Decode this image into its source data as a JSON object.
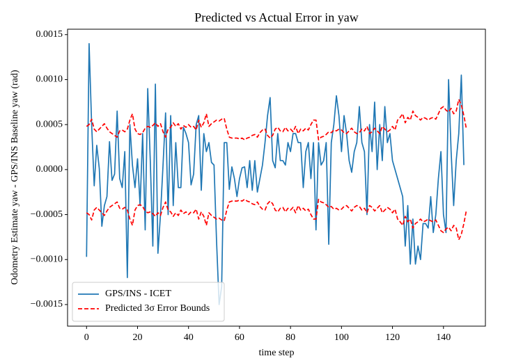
{
  "chart_data": {
    "type": "line",
    "title": "Predicted vs Actual Error in yaw",
    "x_label": "time step",
    "y_label": "Odometry Estimate yaw - GPS/INS Baseline yaw (rad)",
    "x": [
      0,
      1,
      2,
      3,
      4,
      5,
      6,
      7,
      8,
      9,
      10,
      11,
      12,
      13,
      14,
      15,
      16,
      17,
      18,
      19,
      20,
      21,
      22,
      23,
      24,
      25,
      26,
      27,
      28,
      29,
      30,
      31,
      32,
      33,
      34,
      35,
      36,
      37,
      38,
      39,
      40,
      41,
      42,
      43,
      44,
      45,
      46,
      47,
      48,
      49,
      50,
      51,
      52,
      53,
      54,
      55,
      56,
      57,
      58,
      59,
      60,
      61,
      62,
      63,
      64,
      65,
      66,
      67,
      68,
      69,
      70,
      71,
      72,
      73,
      74,
      75,
      76,
      77,
      78,
      79,
      80,
      81,
      82,
      83,
      84,
      85,
      86,
      87,
      88,
      89,
      90,
      91,
      92,
      93,
      94,
      95,
      96,
      97,
      98,
      99,
      100,
      101,
      102,
      103,
      104,
      105,
      106,
      107,
      108,
      109,
      110,
      111,
      112,
      113,
      114,
      115,
      116,
      117,
      118,
      119,
      120,
      121,
      122,
      123,
      124,
      125,
      126,
      127,
      128,
      129,
      130,
      131,
      132,
      133,
      134,
      135,
      136,
      137,
      138,
      139,
      140,
      141,
      142,
      143,
      144,
      145,
      146,
      147,
      148,
      149
    ],
    "series": [
      {
        "name": "GPS/INS - ICET",
        "color": "#1f77b4",
        "dash": false,
        "values": [
          -0.00097,
          0.0014,
          0.0005,
          -0.00018,
          0.00027,
          1e-05,
          -0.00063,
          -0.0004,
          -0.0003,
          0.00031,
          -0.00012,
          -5e-05,
          0.00065,
          -0.0001,
          -0.0002,
          0.0002,
          -0.0012,
          0.0005,
          5e-05,
          -0.0002,
          0.00012,
          -0.0004,
          0.0004,
          -0.00067,
          0.0009,
          0.0001,
          -0.00085,
          0.00095,
          -0.00093,
          -0.0005,
          5e-05,
          0.00063,
          -0.0005,
          0.0006,
          -0.0004,
          0.0003,
          -0.0002,
          -0.0002,
          0.00047,
          0.0004,
          0.0003,
          -0.00017,
          -5e-05,
          0.0005,
          0.0006,
          -0.00023,
          0.0004,
          0.0002,
          0.0003,
          8e-05,
          5e-05,
          -0.0008,
          -0.0015,
          -0.0013,
          0.0003,
          0.0003,
          -0.00022,
          3e-05,
          -0.0001,
          -0.0003,
          -0.0001,
          2e-05,
          3e-05,
          -0.0002,
          0.0001,
          -0.00023,
          0.0001,
          -0.00025,
          -0.0001,
          5e-05,
          0.0003,
          0.0006,
          0.0008,
          0.0001,
          2e-05,
          0.0004,
          0.0001,
          0.0001,
          5e-05,
          0.0003,
          0.0002,
          0.0004,
          0.0004,
          0.0003,
          0.0003,
          -0.0002,
          0.0002,
          0.0003,
          -0.0001,
          0.0003,
          -0.00067,
          0.0003,
          5e-05,
          0.0001,
          0.0003,
          -0.00083,
          0.0003,
          0.0005,
          0.00082,
          0.0006,
          0.0002,
          0.0006,
          0.0004,
          0.0001,
          -3e-05,
          0.0002,
          0.0003,
          0.0007,
          0.0003,
          0.0002,
          -0.0005,
          0.0005,
          0.0002,
          0.00075,
          0,
          0.0005,
          0.0001,
          0.0007,
          0.0003,
          0.0004,
          0.0001,
          0,
          -0.0001,
          -0.0002,
          -0.0003,
          -0.00085,
          -0.0004,
          -0.00105,
          -0.00055,
          -0.00105,
          -0.00085,
          -0.001,
          -0.0006,
          -0.0006,
          -0.00065,
          -0.0003,
          -0.0007,
          -0.0005,
          -0.0001,
          0.0002,
          -0.0005,
          -0.0007,
          0.001,
          0.0002,
          -0.0004,
          0.0001,
          0.0004,
          0.00105,
          5e-05,
          null
        ]
      },
      {
        "name": "Predicted 3σ Error Bounds",
        "color": "#ff0000",
        "dash": true,
        "values": [
          0.00048,
          0.0005,
          0.00056,
          0.00045,
          0.00042,
          0.00045,
          0.00048,
          0.00051,
          0.00046,
          0.00042,
          0.0004,
          0.00038,
          0.00036,
          0.00043,
          0.00044,
          0.00042,
          0.00045,
          0.00055,
          0.00062,
          0.00045,
          0.0004,
          0.00039,
          0.00041,
          0.00046,
          0.00048,
          0.00047,
          0.00049,
          0.00052,
          0.00048,
          0.00051,
          0.00042,
          0.00036,
          0.00045,
          0.00047,
          0.00052,
          0.00048,
          0.00051,
          0.00045,
          0.00049,
          0.00047,
          0.0005,
          0.00047,
          0.00048,
          0.00044,
          0.00055,
          0.00047,
          0.00052,
          0.00062,
          0.00048,
          0.00051,
          0.00053,
          0.00055,
          0.00054,
          0.00056,
          0.00057,
          0.00045,
          0.00036,
          0.00035,
          0.00035,
          0.00035,
          0.00034,
          0.00035,
          0.00033,
          0.00035,
          0.00036,
          0.00038,
          0.00039,
          0.00036,
          0.00041,
          0.00044,
          0.00045,
          0.00038,
          0.00035,
          0.00038,
          0.00045,
          0.00047,
          0.00043,
          0.00042,
          0.00047,
          0.00043,
          0.00045,
          0.00042,
          0.00048,
          0.0004,
          0.00045,
          0.00043,
          0.00046,
          0.00044,
          0.0005,
          0.00055,
          0.00055,
          0.00033,
          0.00036,
          0.00037,
          0.00039,
          0.00042,
          0.00041,
          0.00044,
          0.00043,
          0.00045,
          0.00044,
          0.00041,
          0.0004,
          0.00043,
          0.00046,
          0.00042,
          0.0004,
          0.00041,
          0.00045,
          0.00043,
          0.00048,
          0.0004,
          0.00042,
          0.00046,
          0.00043,
          0.0004,
          0.00048,
          0.00045,
          0.00042,
          0.00044,
          0.00048,
          0.00044,
          0.00055,
          0.00058,
          0.00062,
          0.00052,
          0.00058,
          0.00055,
          0.00065,
          0.0006,
          0.00058,
          0.00055,
          0.00058,
          0.00057,
          0.00055,
          0.00057,
          0.00058,
          0.00056,
          0.00062,
          0.00068,
          0.0007,
          0.00066,
          0.00064,
          0.00068,
          0.00062,
          0.00065,
          0.00078,
          0.00072,
          0.0006,
          0.00045
        ]
      },
      {
        "color": "#ff0000",
        "dash": true,
        "values": [
          -0.00048,
          -0.0005,
          -0.00056,
          -0.00045,
          -0.00042,
          -0.00045,
          -0.00048,
          -0.00051,
          -0.00046,
          -0.00042,
          -0.0004,
          -0.00038,
          -0.00036,
          -0.00043,
          -0.00044,
          -0.00042,
          -0.00045,
          -0.00055,
          -0.00062,
          -0.00045,
          -0.0004,
          -0.00039,
          -0.00041,
          -0.00046,
          -0.00048,
          -0.00047,
          -0.00049,
          -0.00052,
          -0.00048,
          -0.00051,
          -0.00042,
          -0.00036,
          -0.00045,
          -0.00047,
          -0.00052,
          -0.00048,
          -0.00051,
          -0.00045,
          -0.00049,
          -0.00047,
          -0.0005,
          -0.00047,
          -0.00048,
          -0.00044,
          -0.00055,
          -0.00047,
          -0.00052,
          -0.00062,
          -0.00048,
          -0.00051,
          -0.00053,
          -0.00055,
          -0.00054,
          -0.00056,
          -0.00057,
          -0.00045,
          -0.00036,
          -0.00035,
          -0.00035,
          -0.00035,
          -0.00034,
          -0.00035,
          -0.00033,
          -0.00035,
          -0.00036,
          -0.00038,
          -0.00039,
          -0.00036,
          -0.00041,
          -0.00044,
          -0.00045,
          -0.00038,
          -0.00035,
          -0.00038,
          -0.00045,
          -0.00047,
          -0.00043,
          -0.00042,
          -0.00047,
          -0.00043,
          -0.00045,
          -0.00042,
          -0.00048,
          -0.0004,
          -0.00045,
          -0.00043,
          -0.00046,
          -0.00044,
          -0.0005,
          -0.00055,
          -0.00055,
          -0.00033,
          -0.00036,
          -0.00037,
          -0.00039,
          -0.00042,
          -0.00041,
          -0.00044,
          -0.00043,
          -0.00045,
          -0.00044,
          -0.00041,
          -0.0004,
          -0.00043,
          -0.00046,
          -0.00042,
          -0.0004,
          -0.00041,
          -0.00045,
          -0.00043,
          -0.00048,
          -0.0004,
          -0.00042,
          -0.00046,
          -0.00043,
          -0.0004,
          -0.00048,
          -0.00045,
          -0.00042,
          -0.00044,
          -0.00048,
          -0.00044,
          -0.00055,
          -0.00058,
          -0.00062,
          -0.00052,
          -0.00058,
          -0.00055,
          -0.00065,
          -0.0006,
          -0.00058,
          -0.00055,
          -0.00058,
          -0.00057,
          -0.00055,
          -0.00057,
          -0.00058,
          -0.00056,
          -0.00062,
          -0.00068,
          -0.0007,
          -0.00066,
          -0.00064,
          -0.00068,
          -0.00062,
          -0.00065,
          -0.00078,
          -0.00072,
          -0.0006,
          -0.00045
        ]
      }
    ],
    "xlim": [
      -7.45,
      156.45
    ],
    "ylim": [
      -0.00174,
      0.00156
    ],
    "xticks": [
      0,
      20,
      40,
      60,
      80,
      100,
      120,
      140
    ],
    "yticks": [
      {
        "value": -0.0015,
        "label": "−0.0015"
      },
      {
        "value": -0.001,
        "label": "−0.0010"
      },
      {
        "value": -0.0005,
        "label": "−0.0005"
      },
      {
        "value": 0,
        "label": "0.0000"
      },
      0.0005,
      {
        "value": 0.001,
        "label": "0.0010"
      },
      0.0015
    ],
    "legend": "lower left"
  }
}
